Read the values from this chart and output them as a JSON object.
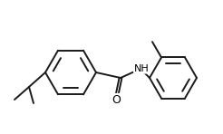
{
  "background_color": "#ffffff",
  "bond_color": "#1a1a1a",
  "text_color": "#000000",
  "line_width": 1.4,
  "font_size": 7.5,
  "figsize": [
    2.46,
    1.48
  ],
  "dpi": 100
}
